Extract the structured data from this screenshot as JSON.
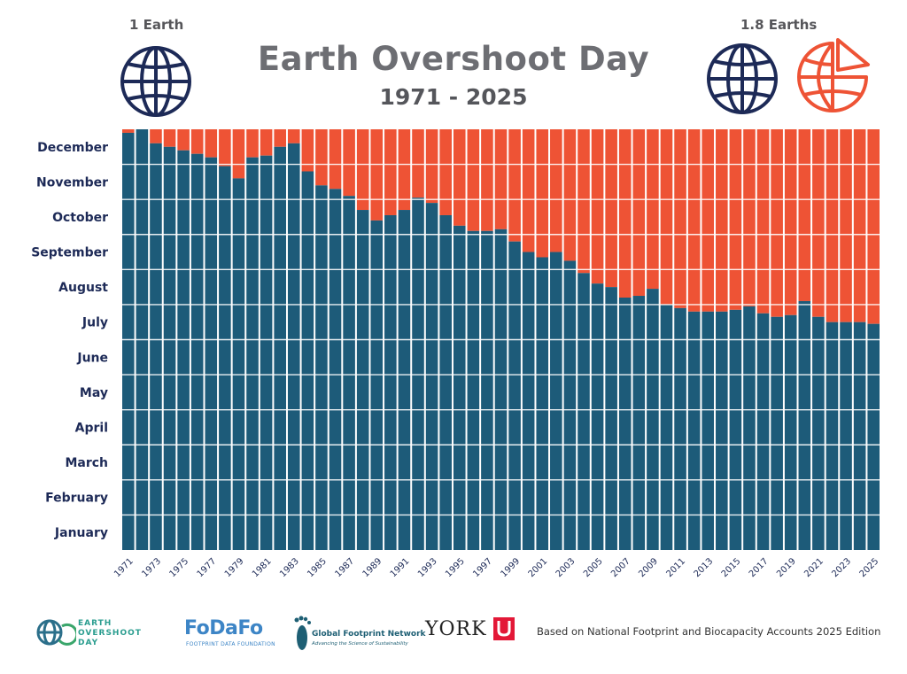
{
  "header": {
    "title": "Earth Overshoot Day",
    "subtitle": "1971 - 2025",
    "left_label": "1 Earth",
    "right_label": "1.8 Earths"
  },
  "colors": {
    "earth": "#1d5b79",
    "overshoot": "#ee5335",
    "globe": "#1d2a57",
    "text": "#1d2a57"
  },
  "icons": [
    "globe-icon",
    "partial-globe-icon"
  ],
  "footer": {
    "eod_logo": "EARTH OVERSHOOT DAY",
    "fodafo_logo": "FoDaFo",
    "fodafo_sub": "FOOTPRINT DATA FOUNDATION",
    "gfn_logo": "Global Footprint Network",
    "gfn_sub": "Advancing the Science of Sustainability",
    "york_logo": "YORK",
    "note": "Based on National Footprint and Biocapacity Accounts 2025 Edition"
  },
  "chart_data": {
    "type": "bar",
    "stacked": true,
    "title": "Earth Overshoot Day",
    "subtitle": "1971 - 2025",
    "y_tick_labels": [
      "January",
      "February",
      "March",
      "April",
      "May",
      "June",
      "July",
      "August",
      "September",
      "October",
      "November",
      "December"
    ],
    "x_tick_labels": [
      "1971",
      "1973",
      "1975",
      "1977",
      "1979",
      "1981",
      "1983",
      "1985",
      "1987",
      "1989",
      "1991",
      "1993",
      "1995",
      "1997",
      "1999",
      "2001",
      "2003",
      "2005",
      "2007",
      "2009",
      "2011",
      "2013",
      "2015",
      "2017",
      "2019",
      "2021",
      "2023",
      "2025"
    ],
    "ylim": [
      0,
      12
    ],
    "categories": [
      1971,
      1972,
      1973,
      1974,
      1975,
      1976,
      1977,
      1978,
      1979,
      1980,
      1981,
      1982,
      1983,
      1984,
      1985,
      1986,
      1987,
      1988,
      1989,
      1990,
      1991,
      1992,
      1993,
      1994,
      1995,
      1996,
      1997,
      1998,
      1999,
      2000,
      2001,
      2002,
      2003,
      2004,
      2005,
      2006,
      2007,
      2008,
      2009,
      2010,
      2011,
      2012,
      2013,
      2014,
      2015,
      2016,
      2017,
      2018,
      2019,
      2020,
      2021,
      2022,
      2023,
      2024,
      2025
    ],
    "series": [
      {
        "values": [
          11.9,
          12.0,
          11.6,
          11.5,
          11.4,
          11.3,
          11.2,
          10.95,
          10.6,
          11.2,
          11.25,
          11.5,
          11.6,
          10.8,
          10.4,
          10.3,
          10.1,
          9.7,
          9.4,
          9.55,
          9.7,
          10.05,
          9.9,
          9.55,
          9.25,
          9.1,
          9.1,
          9.15,
          8.8,
          8.5,
          8.35,
          8.5,
          8.25,
          7.9,
          7.6,
          7.5,
          7.2,
          7.25,
          7.45,
          7.0,
          6.9,
          6.8,
          6.8,
          6.8,
          6.85,
          6.95,
          6.75,
          6.65,
          6.7,
          7.1,
          6.65,
          6.5,
          6.5,
          6.5,
          6.45
        ]
      }
    ]
  }
}
